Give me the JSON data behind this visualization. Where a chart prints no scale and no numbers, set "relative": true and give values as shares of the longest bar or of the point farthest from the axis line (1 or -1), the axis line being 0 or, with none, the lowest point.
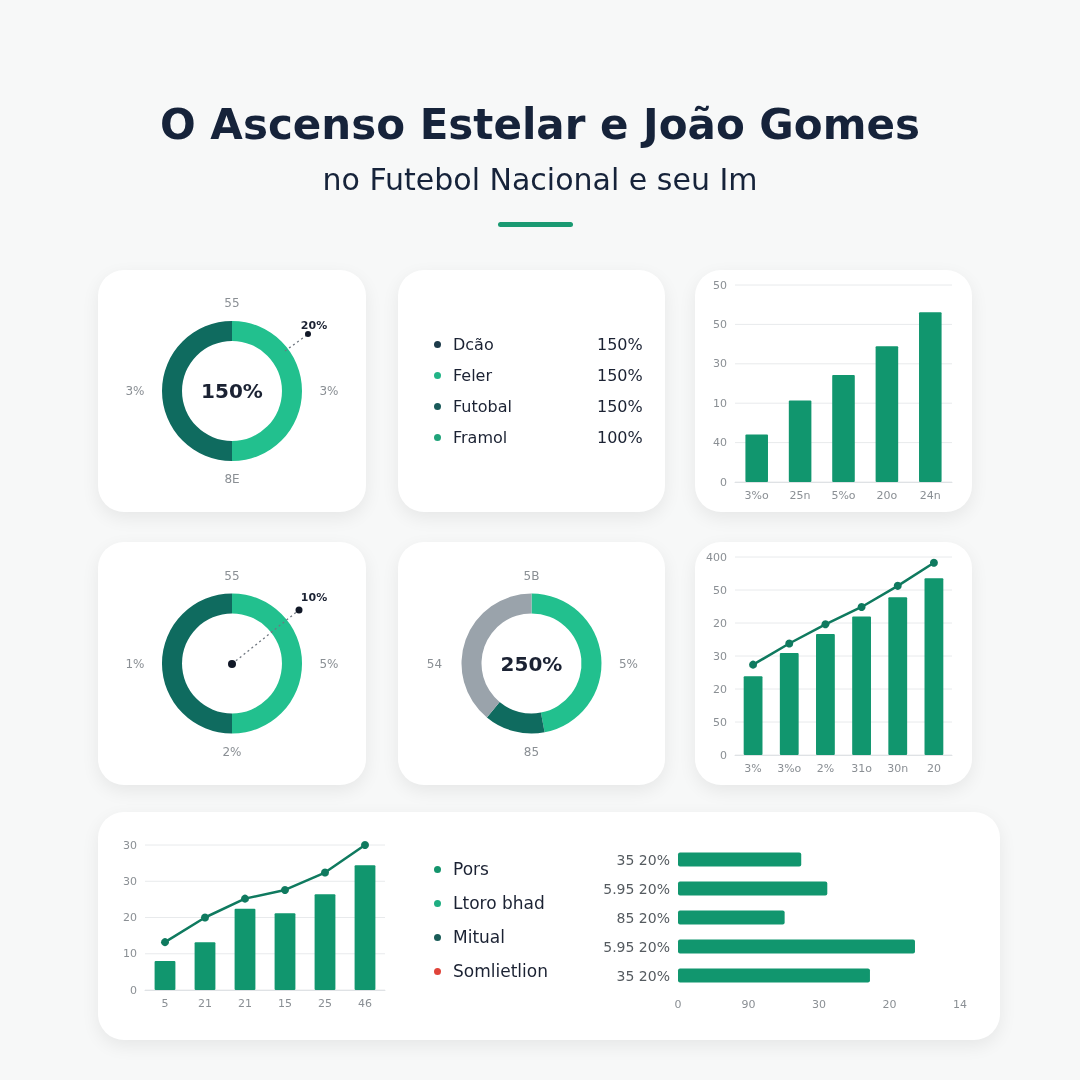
{
  "chart_data": [
    {
      "type": "donut",
      "title": "O Ascenso Estelar e João Gomes",
      "subtitle": "no Futebol Nacional e seu Im",
      "categories": [
        null,
        null
      ],
      "values": [
        50,
        50
      ],
      "colors": [
        "#22c08e",
        "#0f6b5f"
      ],
      "annotations": [
        "55",
        "3%",
        "8E",
        "3%",
        "20%",
        "150%"
      ]
    },
    {
      "type": "other",
      "categories": [
        "Dcão",
        "Feler",
        "Futobal",
        "Framol"
      ],
      "value_labels": [
        "150%",
        "150%",
        "150%",
        "100%"
      ],
      "colors": [
        "#1d3b4a",
        "#22b487",
        "#1a5a5a",
        "#20a37a"
      ]
    },
    {
      "type": "bar",
      "relative": true,
      "categories": [
        "3%o",
        "25n",
        "5%o",
        "20o",
        "24n"
      ],
      "values": [
        0.28,
        0.48,
        0.63,
        0.8,
        1
      ],
      "color": "#11966e",
      "annotations": [
        "0",
        "40",
        "10",
        "30",
        "50",
        "50"
      ],
      "grid": "y"
    },
    {
      "type": "donut",
      "categories": [
        null,
        null
      ],
      "values": [
        50,
        50
      ],
      "colors": [
        "#22c08e",
        "#0f6b5f"
      ],
      "annotations": [
        "55",
        "5%",
        "2%",
        "1%",
        "10%"
      ]
    },
    {
      "type": "donut",
      "categories": [
        null,
        null,
        null
      ],
      "values": [
        47,
        14,
        39
      ],
      "colors": [
        "#22c08e",
        "#0f6b5f",
        "#9aa3ab"
      ],
      "annotations": [
        "5B",
        "5%",
        "85",
        "54",
        "250%"
      ]
    },
    {
      "type": "bar",
      "relative": true,
      "categories": [
        "3%",
        "3%o",
        "2%",
        "31o",
        "30n",
        "20"
      ],
      "annotations": [
        "0",
        "50",
        "20",
        "30",
        "20",
        "50",
        "400"
      ],
      "grid": "y",
      "marker": "circle",
      "series": [
        {
          "type": "bar",
          "color": "#11966e",
          "values": [
            0.41,
            0.53,
            0.63,
            0.72,
            0.82,
            0.92
          ]
        },
        {
          "type": "line",
          "color": "#0f7a5f",
          "values": [
            0.47,
            0.58,
            0.68,
            0.77,
            0.88,
            1
          ]
        }
      ]
    },
    {
      "type": "bar",
      "relative": true,
      "categories": [
        "5",
        "21",
        "21",
        "15",
        "25",
        "46"
      ],
      "annotations": [
        "0",
        "10",
        "20",
        "30",
        "30"
      ],
      "grid": "y",
      "marker": "circle",
      "series": [
        {
          "type": "bar",
          "color": "#11966e",
          "values": [
            0.2,
            0.33,
            0.56,
            0.53,
            0.66,
            0.86
          ]
        },
        {
          "type": "line",
          "color": "#0f7a5f",
          "values": [
            0.33,
            0.5,
            0.63,
            0.69,
            0.81,
            1
          ]
        }
      ]
    },
    {
      "type": "other",
      "categories": [
        "Pors",
        "Ltoro bhad",
        "Mitual",
        "Somlietlion"
      ],
      "colors": [
        "#14946c",
        "#1fae82",
        "#1a5c58",
        "#e0443a"
      ]
    },
    {
      "type": "bar",
      "orientation": "horizontal",
      "categories": [
        "35 20%",
        "5.95 20%",
        "85 20%",
        "5.95 20%",
        "35 20%"
      ],
      "relative": true,
      "values": [
        0.52,
        0.63,
        0.45,
        1,
        0.81
      ],
      "color": "#11966e",
      "annotations": [
        "0",
        "90",
        "30",
        "20",
        "14"
      ]
    }
  ]
}
